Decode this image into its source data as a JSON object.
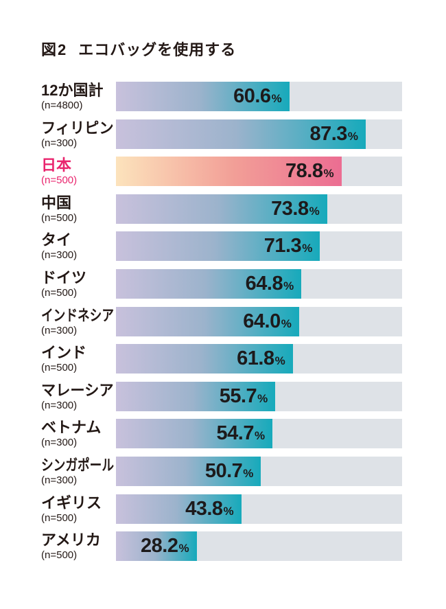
{
  "header": {
    "figure_label": "図2",
    "title": "エコバッグを使用する"
  },
  "chart_data": {
    "type": "bar",
    "orientation": "horizontal",
    "title": "図2 エコバッグを使用する",
    "xlabel": "",
    "ylabel": "",
    "xlim": [
      0,
      100
    ],
    "unit": "%",
    "grid": false,
    "legend": false,
    "value_labels_position": "inside-right",
    "rows": [
      {
        "country": "12か国計",
        "n_label": "(n=4800)",
        "value": 60.6,
        "value_label": "60.6",
        "highlight": false
      },
      {
        "country": "フィリピン",
        "n_label": "(n=300)",
        "value": 87.3,
        "value_label": "87.3",
        "highlight": false
      },
      {
        "country": "日本",
        "n_label": "(n=500)",
        "value": 78.8,
        "value_label": "78.8",
        "highlight": true
      },
      {
        "country": "中国",
        "n_label": "(n=500)",
        "value": 73.8,
        "value_label": "73.8",
        "highlight": false
      },
      {
        "country": "タイ",
        "n_label": "(n=300)",
        "value": 71.3,
        "value_label": "71.3",
        "highlight": false
      },
      {
        "country": "ドイツ",
        "n_label": "(n=500)",
        "value": 64.8,
        "value_label": "64.8",
        "highlight": false
      },
      {
        "country": "インドネシア",
        "n_label": "(n=300)",
        "value": 64.0,
        "value_label": "64.0",
        "highlight": false
      },
      {
        "country": "インド",
        "n_label": "(n=500)",
        "value": 61.8,
        "value_label": "61.8",
        "highlight": false
      },
      {
        "country": "マレーシア",
        "n_label": "(n=300)",
        "value": 55.7,
        "value_label": "55.7",
        "highlight": false
      },
      {
        "country": "ベトナム",
        "n_label": "(n=300)",
        "value": 54.7,
        "value_label": "54.7",
        "highlight": false
      },
      {
        "country": "シンガポール",
        "n_label": "(n=300)",
        "value": 50.7,
        "value_label": "50.7",
        "highlight": false
      },
      {
        "country": "イギリス",
        "n_label": "(n=500)",
        "value": 43.8,
        "value_label": "43.8",
        "highlight": false
      },
      {
        "country": "アメリカ",
        "n_label": "(n=500)",
        "value": 28.2,
        "value_label": "28.2",
        "highlight": false
      }
    ],
    "colors": {
      "text": "#231815",
      "track": "#dee2e7",
      "value_text": "#1d1a1b",
      "highlight_label": "#e9246d",
      "bar_gradient": [
        "#c8c1dc",
        "#9cb3cc",
        "#17aabb"
      ],
      "highlight_gradient": [
        "#fce3bc",
        "#f29f97",
        "#ec6d92"
      ]
    }
  }
}
